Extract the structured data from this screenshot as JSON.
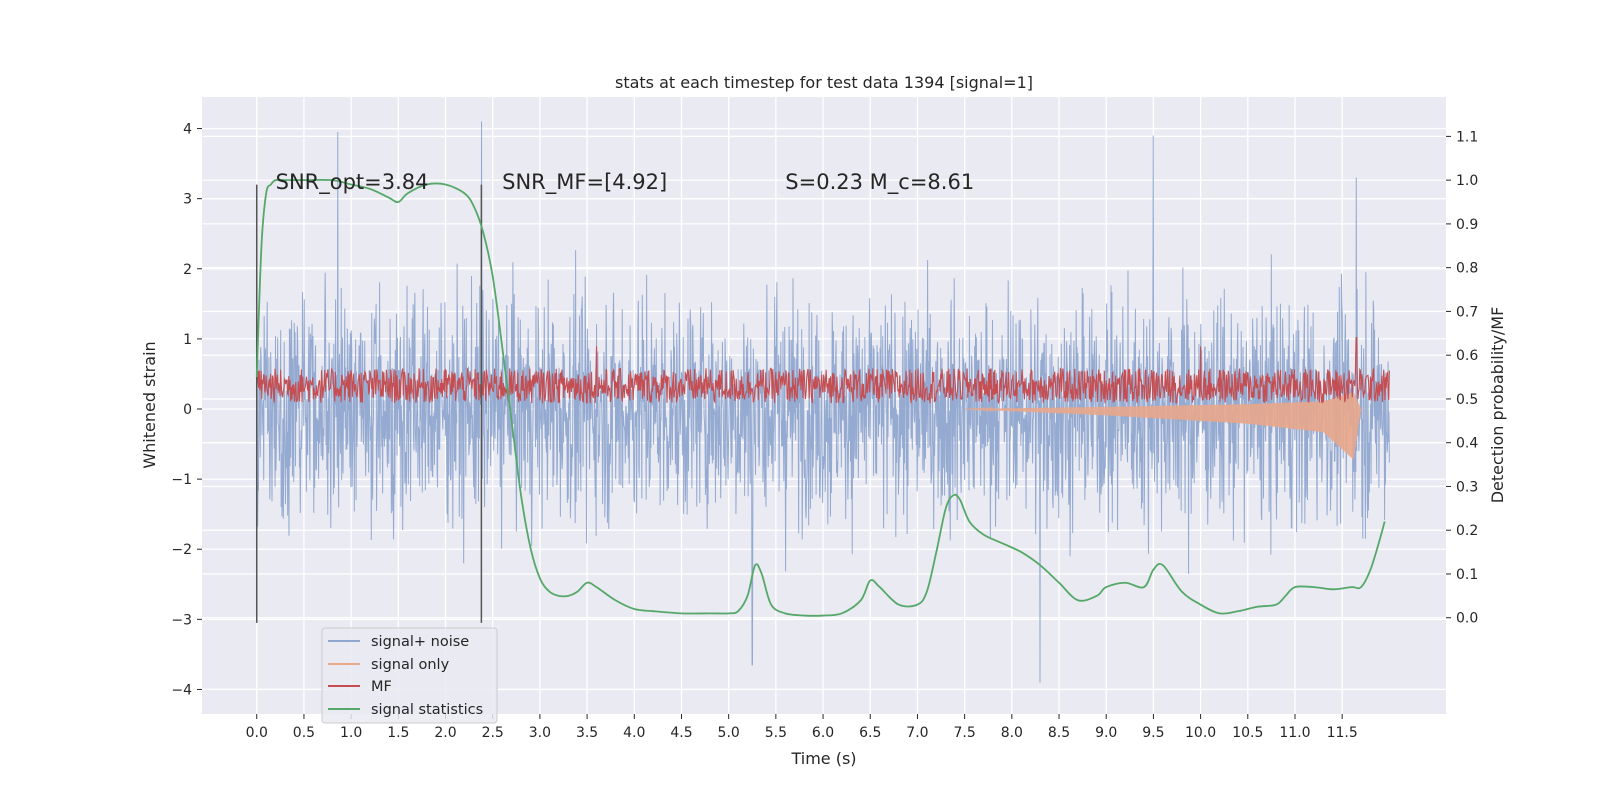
{
  "chart_data": {
    "type": "line",
    "title": "stats at each timestep for test data 1394 [signal=1]",
    "xlabel": "Time (s)",
    "ylabel": "Whitened strain",
    "y2label": "Detection probability/MF",
    "xlim": [
      -0.58,
      12.6
    ],
    "ylim": [
      -4.35,
      4.45
    ],
    "y2lim": [
      -0.22,
      1.19
    ],
    "x_ticks": [
      0.0,
      0.5,
      1.0,
      1.5,
      2.0,
      2.5,
      3.0,
      3.5,
      4.0,
      4.5,
      5.0,
      5.5,
      6.0,
      6.5,
      7.0,
      7.5,
      8.0,
      8.5,
      9.0,
      9.5,
      10.0,
      10.5,
      11.0,
      11.5
    ],
    "x_tick_labels": [
      "0.0",
      "0.5",
      "1.0",
      "1.5",
      "2.0",
      "2.5",
      "3.0",
      "3.5",
      "4.0",
      "4.5",
      "5.0",
      "5.5",
      "6.0",
      "6.5",
      "7.0",
      "7.5",
      "8.0",
      "8.5",
      "9.0",
      "9.5",
      "10.0",
      "10.5",
      "11.0",
      "11.5"
    ],
    "y_ticks": [
      -4,
      -3,
      -2,
      -1,
      0,
      1,
      2,
      3,
      4
    ],
    "y_tick_labels": [
      "−4",
      "−3",
      "−2",
      "−1",
      "0",
      "1",
      "2",
      "3",
      "4"
    ],
    "y2_ticks": [
      0.0,
      0.1,
      0.2,
      0.3,
      0.4,
      0.5,
      0.6,
      0.7,
      0.8,
      0.9,
      1.0,
      1.1
    ],
    "y2_tick_labels": [
      "0.0",
      "0.1",
      "0.2",
      "0.3",
      "0.4",
      "0.5",
      "0.6",
      "0.7",
      "0.8",
      "0.9",
      "1.0",
      "1.1"
    ],
    "grid": true,
    "legend_position": "lower-left",
    "annotations": [
      {
        "text": "SNR_opt=3.84",
        "x": 0.2,
        "y": 3.25
      },
      {
        "text": "SNR_MF=[4.92]",
        "x": 2.6,
        "y": 3.25
      },
      {
        "text": "S=0.23   M_c=8.61",
        "x": 5.6,
        "y": 3.25
      }
    ],
    "vlines": [
      {
        "x": 0.0,
        "ymin": -3.05,
        "ymax": 3.2
      },
      {
        "x": 2.38,
        "ymin": -3.05,
        "ymax": 3.2
      }
    ],
    "series": [
      {
        "name": "signal+ noise",
        "axis": "left",
        "color": "#8fa6cf",
        "kind": "noise",
        "x_range": [
          0.0,
          12.0
        ],
        "typical_abs": 1.1,
        "peaks": [
          [
            0.86,
            3.95
          ],
          [
            2.38,
            4.1
          ],
          [
            9.5,
            3.9
          ],
          [
            5.25,
            -3.65
          ],
          [
            8.3,
            -3.9
          ],
          [
            11.65,
            3.3
          ]
        ]
      },
      {
        "name": "signal only",
        "axis": "left",
        "color": "#e8a68b",
        "kind": "chirp",
        "x_range": [
          7.5,
          11.7
        ],
        "envelope": [
          [
            7.5,
            0.0
          ],
          [
            9.0,
            -0.06
          ],
          [
            10.5,
            -0.14
          ],
          [
            11.3,
            -0.22
          ],
          [
            11.62,
            -0.48
          ],
          [
            11.7,
            0.0
          ]
        ]
      },
      {
        "name": "MF",
        "axis": "right",
        "color": "#c44e52",
        "kind": "band",
        "x_range": [
          0.0,
          12.0
        ],
        "center": 0.53,
        "amplitude": 0.04,
        "peaks": [
          [
            3.6,
            0.62
          ],
          [
            10.0,
            0.62
          ],
          [
            11.65,
            0.64
          ]
        ]
      },
      {
        "name": "signal statistics",
        "axis": "right",
        "color": "#55a868",
        "kind": "line",
        "x": [
          0.0,
          0.05,
          0.1,
          0.15,
          0.2,
          0.3,
          0.5,
          0.8,
          1.0,
          1.2,
          1.4,
          1.5,
          1.6,
          1.8,
          2.0,
          2.2,
          2.3,
          2.4,
          2.5,
          2.6,
          2.7,
          2.8,
          2.9,
          3.0,
          3.1,
          3.2,
          3.3,
          3.4,
          3.5,
          3.6,
          3.8,
          4.0,
          4.2,
          4.5,
          4.8,
          5.0,
          5.1,
          5.2,
          5.28,
          5.35,
          5.45,
          5.6,
          5.8,
          6.0,
          6.2,
          6.4,
          6.5,
          6.6,
          6.8,
          7.0,
          7.1,
          7.2,
          7.3,
          7.38,
          7.45,
          7.55,
          7.7,
          7.9,
          8.1,
          8.3,
          8.5,
          8.7,
          8.9,
          9.0,
          9.2,
          9.4,
          9.5,
          9.6,
          9.8,
          10.0,
          10.2,
          10.4,
          10.6,
          10.8,
          10.9,
          11.0,
          11.2,
          11.4,
          11.6,
          11.7,
          11.8,
          11.9,
          11.95
        ],
        "y": [
          0.55,
          0.85,
          0.97,
          0.99,
          1.0,
          1.0,
          1.0,
          1.0,
          0.99,
          0.98,
          0.96,
          0.95,
          0.97,
          0.99,
          0.99,
          0.97,
          0.94,
          0.88,
          0.78,
          0.62,
          0.45,
          0.28,
          0.16,
          0.09,
          0.06,
          0.05,
          0.05,
          0.06,
          0.08,
          0.07,
          0.04,
          0.02,
          0.015,
          0.01,
          0.01,
          0.01,
          0.015,
          0.05,
          0.12,
          0.1,
          0.03,
          0.01,
          0.005,
          0.005,
          0.01,
          0.04,
          0.085,
          0.07,
          0.03,
          0.03,
          0.06,
          0.15,
          0.25,
          0.28,
          0.27,
          0.22,
          0.19,
          0.17,
          0.15,
          0.12,
          0.08,
          0.04,
          0.05,
          0.07,
          0.08,
          0.07,
          0.11,
          0.12,
          0.06,
          0.03,
          0.01,
          0.015,
          0.025,
          0.03,
          0.05,
          0.07,
          0.07,
          0.065,
          0.07,
          0.07,
          0.11,
          0.18,
          0.22
        ]
      }
    ]
  }
}
